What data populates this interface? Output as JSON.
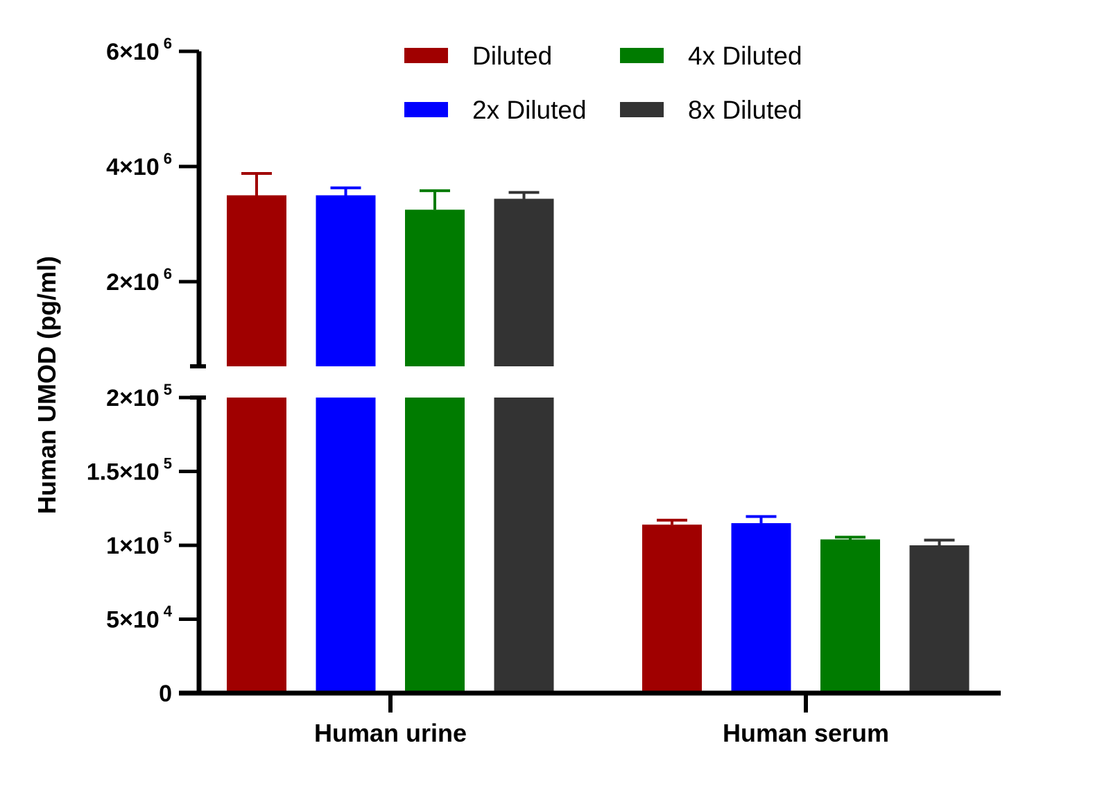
{
  "chart_data": {
    "type": "bar",
    "ylabel": "Human UMOD (pg/ml)",
    "xlabel": "",
    "categories": [
      "Human urine",
      "Human serum"
    ],
    "series": [
      {
        "name": "Diluted",
        "color": "#a00000",
        "values": [
          3500000,
          114000
        ],
        "errors": [
          380000,
          3000
        ]
      },
      {
        "name": "2x Diluted",
        "color": "#0000ff",
        "values": [
          3500000,
          115000
        ],
        "errors": [
          130000,
          4500
        ]
      },
      {
        "name": "4x Diluted",
        "color": "#007b00",
        "values": [
          3250000,
          104000
        ],
        "errors": [
          330000,
          1500
        ]
      },
      {
        "name": "8x Diluted",
        "color": "#333333",
        "values": [
          3440000,
          100000
        ],
        "errors": [
          110000,
          3500
        ]
      }
    ],
    "y_axis": {
      "broken": true,
      "lower_segment": {
        "ylim": [
          0,
          200000
        ],
        "ticks": [
          {
            "base": "0",
            "exp": ""
          },
          {
            "base": "5×10",
            "exp": "4"
          },
          {
            "base": "1×10",
            "exp": "5"
          },
          {
            "base": "1.5×10",
            "exp": "5"
          },
          {
            "base": "2×10",
            "exp": "5"
          }
        ],
        "tick_values": [
          0,
          50000,
          100000,
          150000,
          200000
        ]
      },
      "upper_segment": {
        "ylim": [
          530000,
          6000000
        ],
        "ticks": [
          {
            "base": "2×10",
            "exp": "6"
          },
          {
            "base": "4×10",
            "exp": "6"
          },
          {
            "base": "6×10",
            "exp": "6"
          }
        ],
        "tick_values": [
          2000000,
          4000000,
          6000000
        ]
      }
    },
    "grid": false,
    "legend_position": "top-center"
  }
}
